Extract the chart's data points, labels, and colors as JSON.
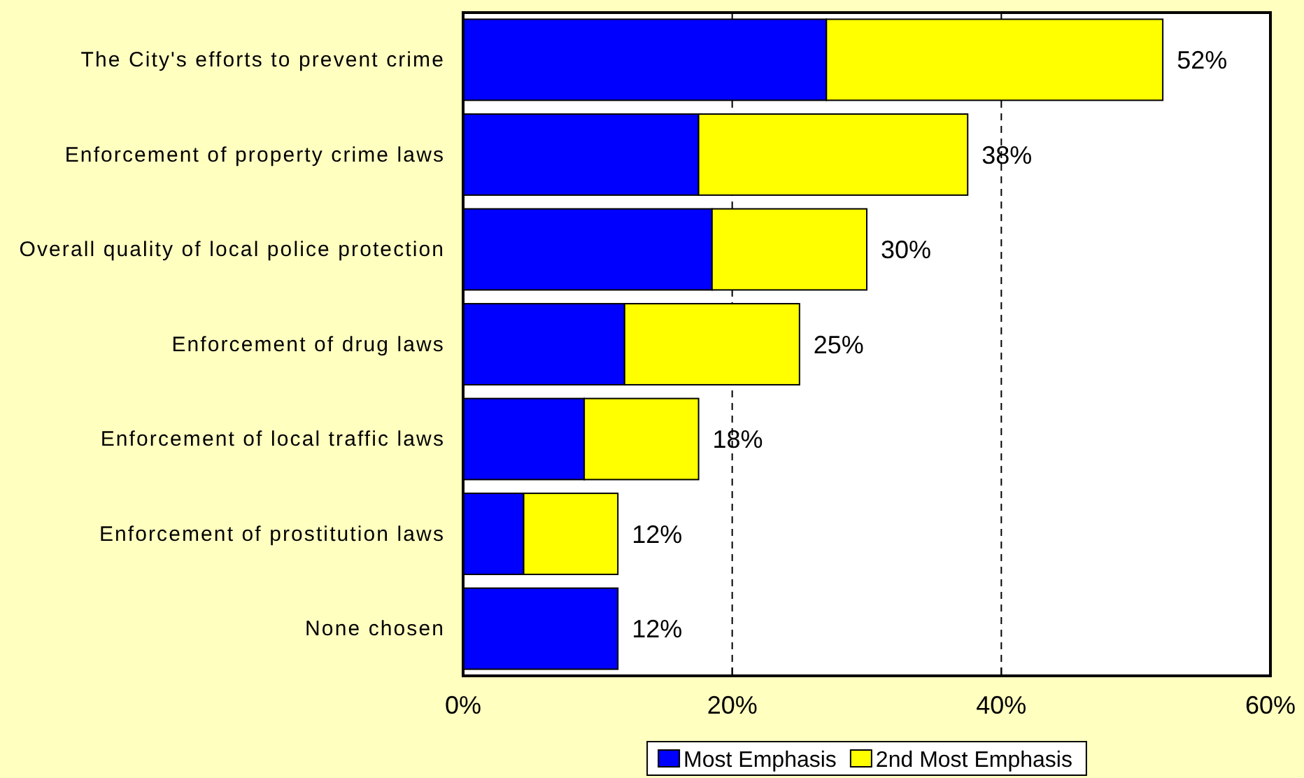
{
  "chart_data": {
    "type": "bar",
    "orientation": "horizontal",
    "stacked": true,
    "categories": [
      "The City's efforts to prevent crime",
      "Enforcement of property crime laws",
      "Overall quality of local police protection",
      "Enforcement of drug laws",
      "Enforcement of local traffic laws",
      "Enforcement of prostitution laws",
      "None chosen"
    ],
    "series": [
      {
        "name": "Most Emphasis",
        "color": "#0000ff",
        "values": [
          27,
          17.5,
          18.5,
          12,
          9,
          4.5,
          11.5
        ]
      },
      {
        "name": "2nd Most Emphasis",
        "color": "#ffff00",
        "values": [
          25,
          20,
          11.5,
          13,
          8.5,
          7,
          null
        ]
      }
    ],
    "totals": [
      "52%",
      "38%",
      "30%",
      "25%",
      "18%",
      "12%",
      "12%"
    ],
    "xlim": [
      0,
      60
    ],
    "xticks": [
      {
        "value": 0,
        "label": "0%"
      },
      {
        "value": 20,
        "label": "20%"
      },
      {
        "value": 40,
        "label": "40%"
      },
      {
        "value": 60,
        "label": "60%"
      }
    ],
    "grid": "x",
    "legend": "bottom"
  }
}
